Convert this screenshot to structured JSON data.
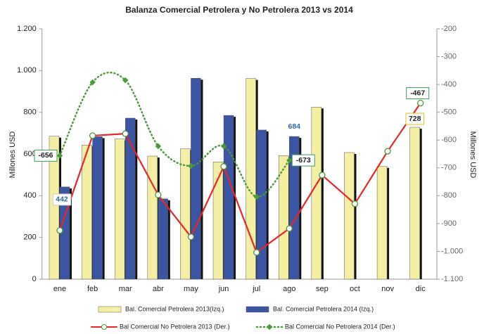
{
  "chart_data": {
    "type": "bar_line",
    "title": "Balanza Comercial Petrolera y No Petrolera 2013 vs 2014",
    "y_label": "Millones USD",
    "y2_label": "Millones USD",
    "categories": [
      "ene",
      "feb",
      "mar",
      "abr",
      "may",
      "jun",
      "jul",
      "ago",
      "sep",
      "oct",
      "nov",
      "dic"
    ],
    "ylim": [
      0,
      1200
    ],
    "yticks": [
      0,
      200,
      400,
      600,
      800,
      {
        "value": 1000,
        "label": "1.000"
      },
      {
        "value": 1200,
        "label": "1.200"
      }
    ],
    "y2lim": [
      -1100,
      -200
    ],
    "y2ticks": [
      {
        "value": -1100,
        "label": "-1.100"
      },
      {
        "value": -1000,
        "label": "-1.000"
      },
      -900,
      -800,
      -700,
      -600,
      -500,
      -400,
      -300,
      -200
    ],
    "series": [
      {
        "name": "Bal. Comercial Petrolera 2013(Izq.)",
        "kind": "bar",
        "color": "#f5efa3",
        "values": [
          685,
          643,
          672,
          590,
          625,
          562,
          962,
          592,
          825,
          607,
          540,
          728
        ],
        "labels_at": [
          11
        ]
      },
      {
        "name": "Bal. Comercial Petrolera 2014 (Izq.)",
        "kind": "bar",
        "color": "#3a55a3",
        "values": [
          442,
          683,
          772,
          385,
          963,
          785,
          715,
          684,
          null,
          null,
          null,
          null
        ],
        "labels_at": [
          0,
          7
        ]
      },
      {
        "name": "Bal Comercial No Petrolera 2013 (Der.)",
        "kind": "line",
        "axis": "y2",
        "color": "#e8262a",
        "values": [
          -925,
          -584,
          -577,
          -797,
          -948,
          -695,
          -1004,
          -918,
          -726,
          -829,
          -640,
          -467
        ],
        "labels_at": [
          11
        ]
      },
      {
        "name": "Bal Comercial No Petrolera 2014 (Der.)",
        "kind": "smooth-dotted",
        "axis": "y2",
        "color": "#4a9a3a",
        "values": [
          -656,
          -392,
          -385,
          -622,
          -693,
          -622,
          -804,
          -673,
          null,
          null,
          null,
          null
        ],
        "labels_at": [
          0,
          7
        ]
      }
    ]
  }
}
